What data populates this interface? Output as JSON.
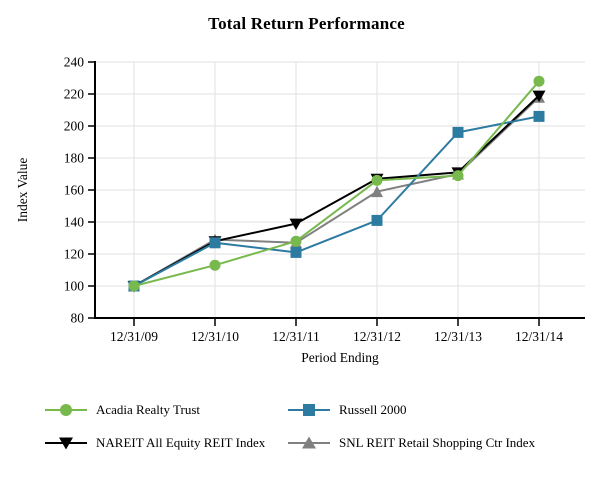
{
  "chart_data": {
    "type": "line",
    "title": "Total Return Performance",
    "xlabel": "Period Ending",
    "ylabel": "Index Value",
    "ylim": [
      80,
      240
    ],
    "ytick_step": 20,
    "grid": true,
    "legend_position": "bottom",
    "categories": [
      "12/31/09",
      "12/31/10",
      "12/31/11",
      "12/31/12",
      "12/31/13",
      "12/31/14"
    ],
    "series": [
      {
        "name": "Acadia Realty Trust",
        "marker": "circle",
        "color": "#78b94e",
        "values": [
          100,
          113,
          128,
          166,
          169,
          228
        ]
      },
      {
        "name": "Russell 2000",
        "marker": "square",
        "color": "#2e7ba1",
        "values": [
          100,
          127,
          121,
          141,
          196,
          206
        ]
      },
      {
        "name": "NAREIT All Equity REIT Index",
        "marker": "triangle-down",
        "color": "#000000",
        "values": [
          100,
          128,
          139,
          167,
          171,
          219
        ]
      },
      {
        "name": "SNL REIT Retail Shopping Ctr Index",
        "marker": "triangle-up",
        "color": "#808080",
        "values": [
          100,
          129,
          127,
          159,
          170,
          218
        ]
      }
    ],
    "colors": {
      "axis": "#000000",
      "gridline": "#e2e2e2",
      "tick_label": "#000000"
    }
  }
}
